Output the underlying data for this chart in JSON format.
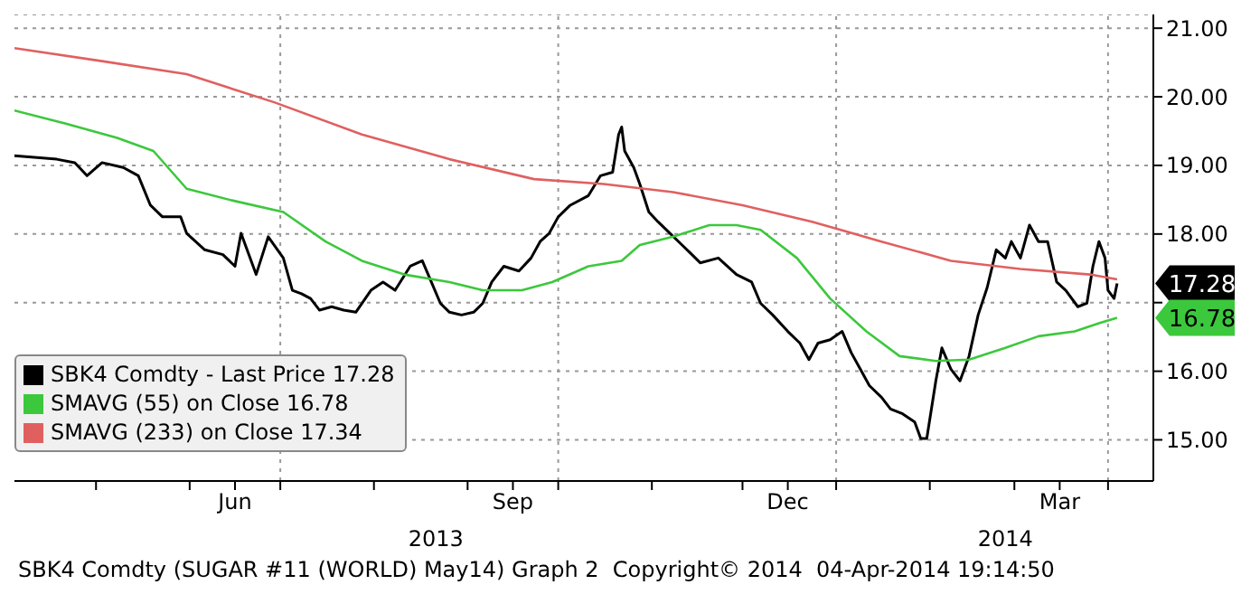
{
  "chart_data": {
    "type": "line",
    "marker": "none",
    "line_style": "solid",
    "grid": "y",
    "legend": "bottom left",
    "xlim": [
      "2013-04-04",
      "2014-04-16"
    ],
    "xticks": [
      {
        "value": "2013-05-01",
        "label": null
      },
      {
        "value": "2013-06-01",
        "label": null
      },
      {
        "value": "2013-06-16",
        "label": "Jun"
      },
      {
        "value": "2013-07-01",
        "label": null
      },
      {
        "value": "2013-08-01",
        "label": null
      },
      {
        "value": "2013-09-01",
        "label": null
      },
      {
        "value": "2013-09-16",
        "label": "Sep"
      },
      {
        "value": "2013-10-01",
        "label": null
      },
      {
        "value": "2013-11-01",
        "label": null
      },
      {
        "value": "2013-12-01",
        "label": null
      },
      {
        "value": "2013-12-16",
        "label": "Dec"
      },
      {
        "value": "2014-01-01",
        "label": null
      },
      {
        "value": "2014-02-01",
        "label": null
      },
      {
        "value": "2014-03-01",
        "label": null
      },
      {
        "value": "2014-03-16",
        "label": "Mar"
      },
      {
        "value": "2014-04-01",
        "label": null
      }
    ],
    "ylim": [
      14.4,
      21.2
    ],
    "yticks": [
      {
        "value": 15,
        "label": "15.00"
      },
      {
        "value": 16,
        "label": "16.00"
      },
      {
        "value": 17,
        "label": null
      },
      {
        "value": 18,
        "label": "18.00"
      },
      {
        "value": 19,
        "label": "19.00"
      },
      {
        "value": 20,
        "label": "20.00"
      },
      {
        "value": 21,
        "label": "21.00"
      }
    ],
    "ref_lines": [
      {
        "axis": "x",
        "value": "2013-07-01",
        "label": null,
        "color": "#9a9a9a",
        "line_style": "dotted"
      },
      {
        "axis": "x",
        "value": "2013-10-01",
        "label": null,
        "color": "#9a9a9a",
        "line_style": "dotted"
      },
      {
        "axis": "x",
        "value": "2014-01-01",
        "label": null,
        "color": "#9a9a9a",
        "line_style": "dotted"
      },
      {
        "axis": "x",
        "value": "2014-04-01",
        "label": null,
        "color": "#9a9a9a",
        "line_style": "dotted"
      }
    ],
    "series": [
      {
        "name": "SBK4 Comdty - Last Price 17.28",
        "color": "#000000",
        "x": [
          "2013-04-04",
          "2013-04-18",
          "2013-04-24",
          "2013-04-28",
          "2013-05-03",
          "2013-05-10",
          "2013-05-15",
          "2013-05-19",
          "2013-05-23",
          "2013-05-29",
          "2013-05-31",
          "2013-06-06",
          "2013-06-12",
          "2013-06-16",
          "2013-06-18",
          "2013-06-23",
          "2013-06-27",
          "2013-07-02",
          "2013-07-05",
          "2013-07-08",
          "2013-07-11",
          "2013-07-14",
          "2013-07-18",
          "2013-07-22",
          "2013-07-26",
          "2013-07-31",
          "2013-08-04",
          "2013-08-08",
          "2013-08-13",
          "2013-08-17",
          "2013-08-20",
          "2013-08-23",
          "2013-08-26",
          "2013-08-30",
          "2013-09-03",
          "2013-09-06",
          "2013-09-09",
          "2013-09-13",
          "2013-09-18",
          "2013-09-22",
          "2013-09-25",
          "2013-09-28",
          "2013-10-01",
          "2013-10-05",
          "2013-10-11",
          "2013-10-15",
          "2013-10-19",
          "2013-10-21",
          "2013-10-22",
          "2013-10-23",
          "2013-10-26",
          "2013-10-28",
          "2013-10-31",
          "2013-11-03",
          "2013-11-07",
          "2013-11-11",
          "2013-11-17",
          "2013-11-23",
          "2013-11-29",
          "2013-12-04",
          "2013-12-07",
          "2013-12-11",
          "2013-12-16",
          "2013-12-20",
          "2013-12-23",
          "2013-12-26",
          "2013-12-30",
          "2014-01-03",
          "2014-01-06",
          "2014-01-09",
          "2014-01-12",
          "2014-01-16",
          "2014-01-19",
          "2014-01-23",
          "2014-01-27",
          "2014-01-29",
          "2014-01-31",
          "2014-02-03",
          "2014-02-05",
          "2014-02-08",
          "2014-02-11",
          "2014-02-14",
          "2014-02-17",
          "2014-02-20",
          "2014-02-23",
          "2014-02-26",
          "2014-02-28",
          "2014-03-03",
          "2014-03-06",
          "2014-03-09",
          "2014-03-12",
          "2014-03-15",
          "2014-03-18",
          "2014-03-22",
          "2014-03-25",
          "2014-03-27",
          "2014-03-29",
          "2014-03-31",
          "2014-04-01",
          "2014-04-03",
          "2014-04-04"
        ],
        "values": [
          19.14,
          19.09,
          19.04,
          18.85,
          19.04,
          18.97,
          18.85,
          18.42,
          18.25,
          18.25,
          18.01,
          17.77,
          17.7,
          17.53,
          18.01,
          17.41,
          17.96,
          17.65,
          17.18,
          17.13,
          17.06,
          16.89,
          16.94,
          16.89,
          16.86,
          17.18,
          17.3,
          17.18,
          17.53,
          17.61,
          17.3,
          16.99,
          16.86,
          16.82,
          16.86,
          16.99,
          17.3,
          17.53,
          17.46,
          17.65,
          17.89,
          18.01,
          18.25,
          18.42,
          18.56,
          18.85,
          18.9,
          19.45,
          19.56,
          19.21,
          18.97,
          18.73,
          18.32,
          18.18,
          18.01,
          17.84,
          17.58,
          17.65,
          17.41,
          17.3,
          16.99,
          16.82,
          16.58,
          16.41,
          16.17,
          16.41,
          16.46,
          16.58,
          16.27,
          16.03,
          15.79,
          15.62,
          15.45,
          15.38,
          15.26,
          15.02,
          15.02,
          15.86,
          16.34,
          16.03,
          15.86,
          16.22,
          16.82,
          17.22,
          17.77,
          17.65,
          17.89,
          17.65,
          18.13,
          17.89,
          17.89,
          17.3,
          17.18,
          16.94,
          16.99,
          17.53,
          17.89,
          17.65,
          17.18,
          17.06,
          17.28
        ]
      },
      {
        "name": "SMAVG (55) on Close 16.78",
        "color": "#3cc83c",
        "x": [
          "2013-04-04",
          "2013-04-21",
          "2013-05-08",
          "2013-05-20",
          "2013-05-31",
          "2013-06-15",
          "2013-07-02",
          "2013-07-16",
          "2013-07-28",
          "2013-08-11",
          "2013-08-26",
          "2013-09-06",
          "2013-09-19",
          "2013-09-29",
          "2013-10-11",
          "2013-10-22",
          "2013-10-28",
          "2013-11-08",
          "2013-11-20",
          "2013-11-29",
          "2013-12-07",
          "2013-12-19",
          "2013-12-30",
          "2014-01-11",
          "2014-01-22",
          "2014-02-03",
          "2014-02-14",
          "2014-02-26",
          "2014-03-09",
          "2014-03-21",
          "2014-03-29",
          "2014-04-04"
        ],
        "values": [
          19.8,
          19.61,
          19.4,
          19.21,
          18.66,
          18.49,
          18.32,
          17.89,
          17.61,
          17.41,
          17.3,
          17.18,
          17.18,
          17.3,
          17.53,
          17.61,
          17.84,
          17.96,
          18.13,
          18.13,
          18.06,
          17.65,
          17.06,
          16.58,
          16.22,
          16.15,
          16.17,
          16.34,
          16.51,
          16.58,
          16.7,
          16.78
        ]
      },
      {
        "name": "SMAVG (233) on Close 17.34",
        "color": "#e06060",
        "x": [
          "2013-04-04",
          "2013-05-03",
          "2013-05-31",
          "2013-06-29",
          "2013-07-28",
          "2013-08-26",
          "2013-09-23",
          "2013-10-16",
          "2013-11-08",
          "2013-12-01",
          "2013-12-24",
          "2014-01-16",
          "2014-02-08",
          "2014-03-03",
          "2014-03-26",
          "2014-04-04"
        ],
        "values": [
          20.71,
          20.52,
          20.33,
          19.92,
          19.45,
          19.09,
          18.8,
          18.73,
          18.61,
          18.42,
          18.18,
          17.89,
          17.61,
          17.49,
          17.41,
          17.34
        ]
      }
    ],
    "annotations": [
      {
        "text": "17.28",
        "x": "2014-04-04",
        "y": 17.28
      },
      {
        "text": "16.78",
        "x": "2014-04-04",
        "y": 16.78
      },
      "2013",
      "2014",
      "SBK4 Comdty (SUGAR #11 (WORLD) May14) Graph 2  Copyright© 2014  04-Apr-2014 19:14:50"
    ]
  }
}
